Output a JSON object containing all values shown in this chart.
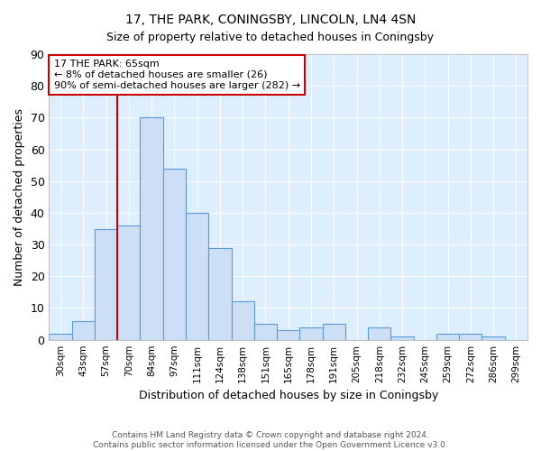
{
  "title": "17, THE PARK, CONINGSBY, LINCOLN, LN4 4SN",
  "subtitle": "Size of property relative to detached houses in Coningsby",
  "xlabel": "Distribution of detached houses by size in Coningsby",
  "ylabel": "Number of detached properties",
  "categories": [
    "30sqm",
    "43sqm",
    "57sqm",
    "70sqm",
    "84sqm",
    "97sqm",
    "111sqm",
    "124sqm",
    "138sqm",
    "151sqm",
    "165sqm",
    "178sqm",
    "191sqm",
    "205sqm",
    "218sqm",
    "232sqm",
    "245sqm",
    "259sqm",
    "272sqm",
    "286sqm",
    "299sqm"
  ],
  "values": [
    2,
    6,
    35,
    36,
    70,
    54,
    40,
    29,
    12,
    5,
    3,
    4,
    5,
    0,
    4,
    1,
    0,
    2,
    2,
    1,
    0
  ],
  "bar_color": "#ccdff5",
  "bar_edge_color": "#5b9bd5",
  "vline_x": 2.5,
  "vline_color": "#cc0000",
  "ylim": [
    0,
    90
  ],
  "yticks": [
    0,
    10,
    20,
    30,
    40,
    50,
    60,
    70,
    80,
    90
  ],
  "annotation_title": "17 THE PARK: 65sqm",
  "annotation_line1": "← 8% of detached houses are smaller (26)",
  "annotation_line2": "90% of semi-detached houses are larger (282) →",
  "annotation_box_color": "white",
  "annotation_box_edge": "#cc0000",
  "footnote1": "Contains HM Land Registry data © Crown copyright and database right 2024.",
  "footnote2": "Contains public sector information licensed under the Open Government Licence v3.0.",
  "plot_bg_color": "#ddeeff"
}
